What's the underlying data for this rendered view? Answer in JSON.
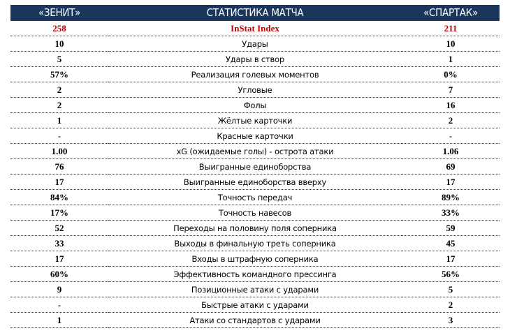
{
  "header": {
    "home": "«ЗЕНИТ»",
    "title": "СТАТИСТИКА МАТЧА",
    "away": "«СПАРТАК»"
  },
  "colors": {
    "header_bg": "#1b365d",
    "highlight": "#c00000"
  },
  "rows": [
    {
      "home": "258",
      "label": "InStat Index",
      "away": "211",
      "highlight": true
    },
    {
      "home": "10",
      "label": "Удары",
      "away": "10"
    },
    {
      "home": "5",
      "label": "Удары в створ",
      "away": "1"
    },
    {
      "home": "57%",
      "label": "Реализация голевых моментов",
      "away": "0%"
    },
    {
      "home": "2",
      "label": "Угловые",
      "away": "7"
    },
    {
      "home": "2",
      "label": "Фолы",
      "away": "16"
    },
    {
      "home": "1",
      "label": "Жёлтые карточки",
      "away": "2"
    },
    {
      "home": "-",
      "label": "Красные карточки",
      "away": "-"
    },
    {
      "home": "1.00",
      "label": "xG (ожидаемые голы) - острота атаки",
      "away": "1.06"
    },
    {
      "home": "76",
      "label": "Выигранные единоборства",
      "away": "69"
    },
    {
      "home": "17",
      "label": "Выигранные единоборства вверху",
      "away": "17"
    },
    {
      "home": "84%",
      "label": "Точность передач",
      "away": "89%"
    },
    {
      "home": "17%",
      "label": "Точность навесов",
      "away": "33%"
    },
    {
      "home": "52",
      "label": "Переходы на половину поля соперника",
      "away": "59"
    },
    {
      "home": "33",
      "label": "Выходы в финальную треть соперника",
      "away": "45"
    },
    {
      "home": "17",
      "label": "Входы в штрафную соперника",
      "away": "17"
    },
    {
      "home": "60%",
      "label": "Эффективность командного прессинга",
      "away": "56%"
    },
    {
      "home": "9",
      "label": "Позиционные атаки с ударами",
      "away": "5"
    },
    {
      "home": "-",
      "label": "Быстрые атаки с ударами",
      "away": "2"
    },
    {
      "home": "1",
      "label": "Атаки со стандартов с ударами",
      "away": "3"
    }
  ]
}
